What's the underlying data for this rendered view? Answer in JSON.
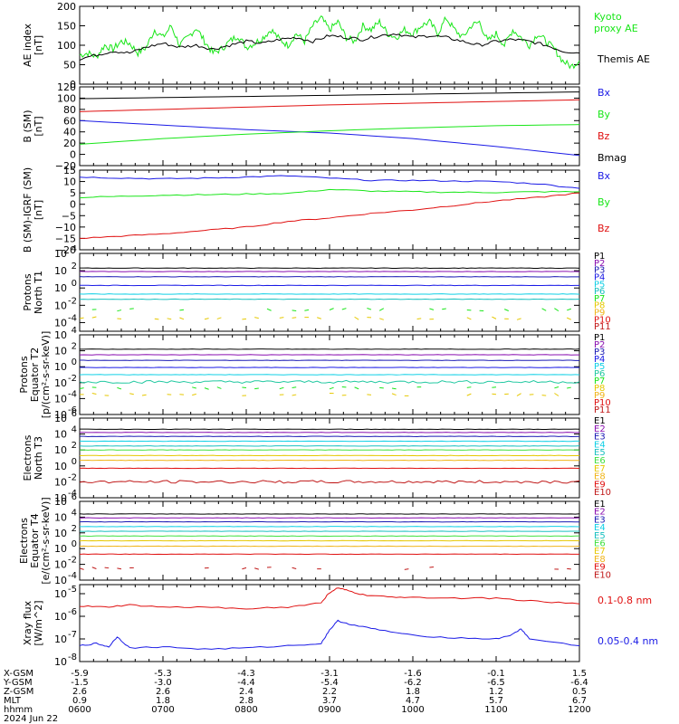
{
  "colors": {
    "black": "#000000",
    "green": "#19e619",
    "red": "#e01010",
    "blue": "#1a1ae6",
    "purple": "#8a0fb0",
    "navy": "#1a1ab4",
    "cyan": "#10d0e6",
    "aqua": "#19c0c0",
    "teal": "#20c8a0",
    "yellow": "#e6c800",
    "orange": "#f0b419",
    "darkred": "#c01818",
    "lime": "#40e040"
  },
  "chart_data": [
    {
      "type": "line",
      "id": "ae",
      "ylabel_lines": [
        "AE index",
        "[nT]"
      ],
      "ylim": [
        0,
        200
      ],
      "yticks": [
        0,
        50,
        100,
        150,
        200
      ],
      "series": [
        {
          "name": "Kyoto proxy AE",
          "name_lines": [
            "Kyoto",
            "proxy AE"
          ],
          "color": "green",
          "x": [
            0,
            0.1,
            0.2,
            0.3,
            0.4,
            0.5,
            0.6,
            0.7,
            0.8,
            0.9,
            1.0,
            1.1,
            1.2,
            1.3,
            1.4,
            1.5,
            1.6,
            1.7,
            1.8,
            1.9,
            2.0,
            2.1,
            2.2,
            2.3,
            2.4,
            2.5,
            2.6,
            2.7,
            2.8,
            2.9,
            3.0,
            3.1,
            3.2,
            3.3,
            3.4,
            3.5,
            3.6,
            3.7,
            3.8,
            3.9,
            4.0,
            4.1,
            4.2,
            4.3,
            4.4,
            4.5,
            4.6,
            4.7,
            4.8,
            4.9,
            5.0,
            5.1,
            5.2,
            5.3,
            5.4,
            5.5,
            5.6,
            5.7,
            5.8,
            5.9,
            6.0
          ],
          "values": [
            75,
            80,
            70,
            100,
            90,
            110,
            105,
            80,
            95,
            140,
            120,
            150,
            100,
            120,
            145,
            110,
            80,
            90,
            110,
            125,
            95,
            105,
            120,
            140,
            115,
            100,
            130,
            110,
            150,
            170,
            140,
            160,
            120,
            110,
            150,
            140,
            160,
            130,
            120,
            140,
            130,
            150,
            160,
            130,
            170,
            140,
            120,
            150,
            160,
            110,
            130,
            100,
            140,
            120,
            100,
            130,
            110,
            90,
            60,
            45,
            60
          ]
        },
        {
          "name": "Themis AE",
          "color": "black",
          "x": [
            0,
            0.2,
            0.4,
            0.6,
            0.8,
            1.0,
            1.2,
            1.4,
            1.6,
            1.8,
            2.0,
            2.2,
            2.4,
            2.6,
            2.8,
            3.0,
            3.2,
            3.4,
            3.6,
            3.8,
            4.0,
            4.2,
            4.4,
            4.6,
            4.8,
            5.0,
            5.2,
            5.4,
            5.6,
            5.8,
            6.0
          ],
          "values": [
            65,
            75,
            85,
            80,
            95,
            105,
            95,
            100,
            90,
            100,
            110,
            105,
            115,
            120,
            110,
            125,
            120,
            115,
            125,
            130,
            120,
            125,
            120,
            110,
            100,
            110,
            115,
            110,
            100,
            85,
            80
          ]
        }
      ]
    },
    {
      "type": "line",
      "id": "bsm",
      "ylabel_lines": [
        "B (SM)",
        "[nT]"
      ],
      "ylim": [
        -20,
        120
      ],
      "yticks": [
        -20,
        0,
        20,
        40,
        60,
        80,
        100,
        120
      ],
      "series": [
        {
          "name": "Bx",
          "color": "blue",
          "x": [
            0,
            1,
            2,
            3,
            4,
            5,
            6
          ],
          "values": [
            60,
            52,
            44,
            38,
            28,
            14,
            -2
          ]
        },
        {
          "name": "By",
          "color": "green",
          "x": [
            0,
            1,
            2,
            3,
            4,
            5,
            6
          ],
          "values": [
            18,
            28,
            36,
            42,
            47,
            51,
            53
          ]
        },
        {
          "name": "Bz",
          "color": "red",
          "x": [
            0,
            1,
            2,
            3,
            4,
            5,
            6
          ],
          "values": [
            76,
            80,
            84,
            88,
            91,
            94,
            97
          ]
        },
        {
          "name": "Bmag",
          "color": "black",
          "x": [
            0,
            1,
            2,
            3,
            4,
            5,
            6
          ],
          "values": [
            99,
            101,
            103,
            105,
            107,
            109,
            111
          ]
        }
      ]
    },
    {
      "type": "line",
      "id": "bigrf",
      "ylabel_lines": [
        "B (SM)-IGRF (SM)",
        "[nT]"
      ],
      "ylim": [
        -20,
        15
      ],
      "yticks": [
        -20,
        -15,
        -10,
        -5,
        0,
        5,
        10,
        15
      ],
      "series": [
        {
          "name": "Bx",
          "color": "blue",
          "x": [
            0,
            0.5,
            1,
            1.5,
            2,
            2.5,
            3,
            3.5,
            4,
            4.5,
            5,
            5.5,
            6
          ],
          "values": [
            12,
            11.5,
            11.2,
            11.5,
            12,
            12.5,
            11.5,
            10.5,
            10.5,
            10.2,
            10,
            9,
            7
          ]
        },
        {
          "name": "By",
          "color": "green",
          "x": [
            0,
            0.5,
            1,
            1.5,
            2,
            2.5,
            3,
            3.5,
            4,
            4.5,
            5,
            5.5,
            6
          ],
          "values": [
            3,
            3.5,
            4,
            4.2,
            4.5,
            4.8,
            6.5,
            5.8,
            5.5,
            5.3,
            5.2,
            5.5,
            5.5
          ]
        },
        {
          "name": "Bz",
          "color": "red",
          "x": [
            0,
            0.5,
            1,
            1.5,
            2,
            2.5,
            3,
            3.5,
            4,
            4.5,
            5,
            5.5,
            6
          ],
          "values": [
            -15,
            -14,
            -13,
            -11.5,
            -10,
            -7.5,
            -6,
            -4,
            -2.5,
            -0.5,
            1.5,
            3,
            5
          ]
        }
      ]
    },
    {
      "type": "line",
      "id": "p1",
      "scale": "log",
      "ylabel_lines": [
        "Protons",
        "North T1"
      ],
      "ylim_exp": [
        -5,
        4
      ],
      "ytick_exps": [
        -4,
        -2,
        0,
        2,
        4
      ],
      "series": [
        {
          "name": "P1",
          "color": "black",
          "log_level": 2.3
        },
        {
          "name": "P2",
          "color": "purple",
          "log_level": 1.9
        },
        {
          "name": "P3",
          "color": "navy",
          "log_level": 1.3
        },
        {
          "name": "P4",
          "color": "blue",
          "log_level": 0.3
        },
        {
          "name": "P5",
          "color": "cyan",
          "log_level": -0.7
        },
        {
          "name": "P6",
          "color": "aqua",
          "log_level": -1.3
        },
        {
          "name": "P7",
          "color": "green",
          "log_level": -2.5
        },
        {
          "name": "P8",
          "color": "yellow",
          "log_level": -3.5
        },
        {
          "name": "P9",
          "color": "orange",
          "log_level": null
        },
        {
          "name": "P10",
          "color": "red",
          "log_level": null
        },
        {
          "name": "P11",
          "color": "darkred",
          "log_level": null
        }
      ]
    },
    {
      "type": "line",
      "id": "p2",
      "scale": "log",
      "ylabel_lines": [
        "Protons",
        "Equator T2",
        "[p/(cm²-s-sr-keV)]"
      ],
      "ylim_exp": [
        -6,
        4
      ],
      "ytick_exps": [
        -6,
        -4,
        -2,
        0,
        2,
        4
      ],
      "series": [
        {
          "name": "P1",
          "color": "black",
          "log_level": 2.2
        },
        {
          "name": "P2",
          "color": "purple",
          "log_level": 1.5
        },
        {
          "name": "P3",
          "color": "navy",
          "log_level": 0.8
        },
        {
          "name": "P4",
          "color": "blue",
          "log_level": -0.1
        },
        {
          "name": "P5",
          "color": "cyan",
          "log_level": -1.0
        },
        {
          "name": "P6",
          "color": "teal",
          "log_level": -1.9
        },
        {
          "name": "P7",
          "color": "green",
          "log_level": -2.7
        },
        {
          "name": "P8",
          "color": "yellow",
          "log_level": -3.5
        },
        {
          "name": "P9",
          "color": "orange",
          "log_level": null
        },
        {
          "name": "P10",
          "color": "red",
          "log_level": null
        },
        {
          "name": "P11",
          "color": "darkred",
          "log_level": null
        }
      ]
    },
    {
      "type": "line",
      "id": "e3",
      "scale": "log",
      "ylabel_lines": [
        "Electrons",
        "North T3"
      ],
      "ylim_exp": [
        -4,
        6
      ],
      "ytick_exps": [
        -4,
        -2,
        0,
        2,
        4,
        6
      ],
      "series": [
        {
          "name": "E1",
          "color": "black",
          "log_level": 4.6
        },
        {
          "name": "E2",
          "color": "purple",
          "log_level": 4.2
        },
        {
          "name": "E3",
          "color": "navy",
          "log_level": 3.7
        },
        {
          "name": "E4",
          "color": "cyan",
          "log_level": 3.1
        },
        {
          "name": "E5",
          "color": "aqua",
          "log_level": 2.5
        },
        {
          "name": "E6",
          "color": "lime",
          "log_level": 2.0
        },
        {
          "name": "E7",
          "color": "yellow",
          "log_level": 1.3
        },
        {
          "name": "E8",
          "color": "orange",
          "log_level": 0.7
        },
        {
          "name": "E9",
          "color": "red",
          "log_level": -0.3
        },
        {
          "name": "E10",
          "color": "darkred",
          "log_level": -2.0
        }
      ]
    },
    {
      "type": "line",
      "id": "e4",
      "scale": "log",
      "ylabel_lines": [
        "Electrons",
        "Equator T4",
        "[e/(cm²-s-sr-keV)]"
      ],
      "ylim_exp": [
        -4,
        6
      ],
      "ytick_exps": [
        -4,
        -2,
        0,
        2,
        4,
        6
      ],
      "series": [
        {
          "name": "E1",
          "color": "black",
          "log_level": 4.4
        },
        {
          "name": "E2",
          "color": "purple",
          "log_level": 3.9
        },
        {
          "name": "E3",
          "color": "navy",
          "log_level": 3.4
        },
        {
          "name": "E4",
          "color": "cyan",
          "log_level": 2.8
        },
        {
          "name": "E5",
          "color": "aqua",
          "log_level": 2.2
        },
        {
          "name": "E6",
          "color": "lime",
          "log_level": 1.6
        },
        {
          "name": "E7",
          "color": "yellow",
          "log_level": 1.0
        },
        {
          "name": "E8",
          "color": "orange",
          "log_level": 0.3
        },
        {
          "name": "E9",
          "color": "red",
          "log_level": -0.7
        },
        {
          "name": "E10",
          "color": "darkred",
          "log_level": -2.5
        }
      ]
    },
    {
      "type": "line",
      "id": "xray",
      "scale": "log",
      "ylabel_lines": [
        "Xray flux",
        "[W/m^2]"
      ],
      "ylim_exp": [
        -8,
        -4.6
      ],
      "ytick_exps": [
        -8,
        -7,
        -6,
        -5
      ],
      "series": [
        {
          "name": "0.1-0.8 nm",
          "color": "red",
          "x": [
            0,
            0.3,
            0.6,
            1.0,
            1.5,
            2.0,
            2.5,
            2.9,
            3.0,
            3.1,
            3.2,
            3.4,
            3.7,
            4.0,
            4.5,
            5.0,
            5.5,
            6.0
          ],
          "log_values": [
            -5.55,
            -5.6,
            -5.5,
            -5.6,
            -5.6,
            -5.65,
            -5.6,
            -5.4,
            -4.95,
            -4.75,
            -4.85,
            -5.05,
            -5.15,
            -5.15,
            -5.2,
            -5.2,
            -5.35,
            -5.45
          ]
        },
        {
          "name": "0.05-0.4 nm",
          "color": "blue",
          "x": [
            0,
            0.2,
            0.35,
            0.45,
            0.6,
            1.0,
            1.5,
            2.0,
            2.5,
            2.9,
            3.0,
            3.1,
            3.3,
            3.6,
            4.0,
            4.5,
            5.0,
            5.2,
            5.3,
            5.4,
            6.0
          ],
          "log_values": [
            -7.3,
            -7.2,
            -7.35,
            -6.9,
            -7.4,
            -7.35,
            -7.45,
            -7.4,
            -7.3,
            -7.2,
            -6.6,
            -6.2,
            -6.4,
            -6.6,
            -6.85,
            -6.95,
            -7.0,
            -6.8,
            -6.55,
            -7.0,
            -7.3
          ]
        }
      ]
    }
  ],
  "ephemeris": {
    "rows": [
      {
        "label": "X-GSM",
        "values": [
          "-5.9",
          "-5.3",
          "-4.3",
          "-3.1",
          "-1.6",
          "-0.1",
          "1.5"
        ]
      },
      {
        "label": "Y-GSM",
        "values": [
          "-1.5",
          "-3.0",
          "-4.4",
          "-5.4",
          "-6.2",
          "-6.5",
          "-6.4"
        ]
      },
      {
        "label": "Z-GSM",
        "values": [
          "2.6",
          "2.6",
          "2.4",
          "2.2",
          "1.8",
          "1.2",
          "0.5"
        ]
      },
      {
        "label": "MLT",
        "values": [
          "0.9",
          "1.8",
          "2.8",
          "3.7",
          "4.7",
          "5.7",
          "6.7"
        ]
      },
      {
        "label": "hhmm",
        "values": [
          "0600",
          "0700",
          "0800",
          "0900",
          "1000",
          "1100",
          "1200"
        ]
      }
    ],
    "date": "2024 Jun 22"
  }
}
